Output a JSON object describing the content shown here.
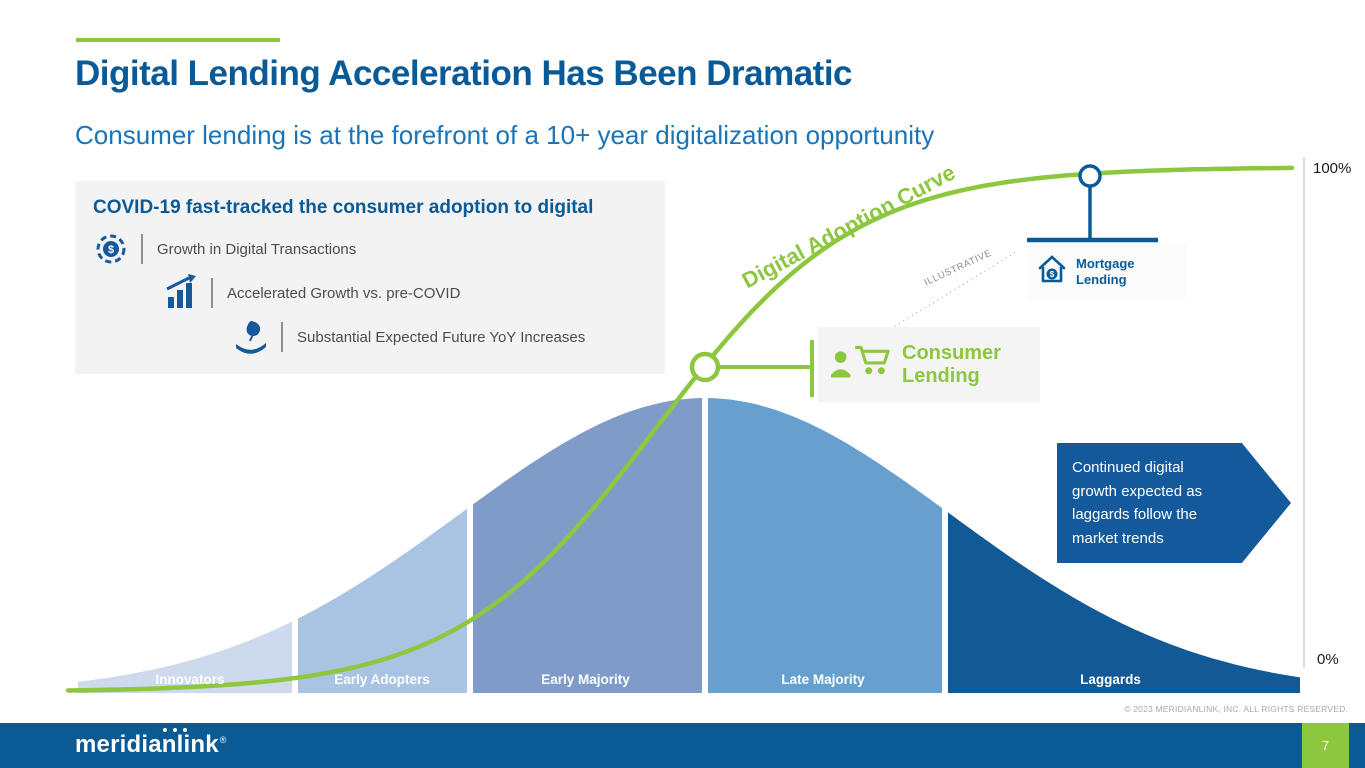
{
  "slide": {
    "title": "Digital Lending Acceleration Has Been Dramatic",
    "subtitle": "Consumer lending is at the forefront of a 10+ year digitalization opportunity",
    "accent_color": "#8dc63f",
    "title_color": "#0a5a97"
  },
  "info_panel": {
    "heading": "COVID-19 fast-tracked the consumer adoption to digital",
    "items": [
      {
        "icon": "dollar-gear-icon",
        "label": "Growth in Digital Transactions"
      },
      {
        "icon": "bar-chart-growth-icon",
        "label": "Accelerated Growth vs. pre-COVID"
      },
      {
        "icon": "hand-leaf-icon",
        "label": "Substantial Expected Future YoY Increases"
      }
    ]
  },
  "chart_data": {
    "type": "area",
    "title": "Digital Adoption Curve",
    "segments": [
      "Innovators",
      "Early Adopters",
      "Early Majority",
      "Late Majority",
      "Laggards"
    ],
    "segment_colors": [
      "#cdd9ec",
      "#a9c3e2",
      "#7f9cc9",
      "#67a0ce",
      "#125a96"
    ],
    "curve": {
      "label": "Digital Adoption Curve",
      "color": "#8dc63f"
    },
    "axis": {
      "top": "100%",
      "bottom": "0%"
    },
    "markers": [
      {
        "label": "Consumer Lending",
        "color": "#8dc63f",
        "icon": "shopper-cart-icon"
      },
      {
        "label": "Mortgage Lending",
        "color": "#0a5a97",
        "icon": "house-dollar-icon"
      }
    ],
    "note": "ILLUSTRATIVE"
  },
  "callouts": {
    "growth_note": "Continued digital growth expected as laggards follow the market trends"
  },
  "footer": {
    "copyright": "© 2023 MERIDIANLINK, INC. ALL RIGHTS RESERVED.",
    "logo_text": "meridianlink",
    "logo_mark": "®",
    "page_number": "7"
  }
}
